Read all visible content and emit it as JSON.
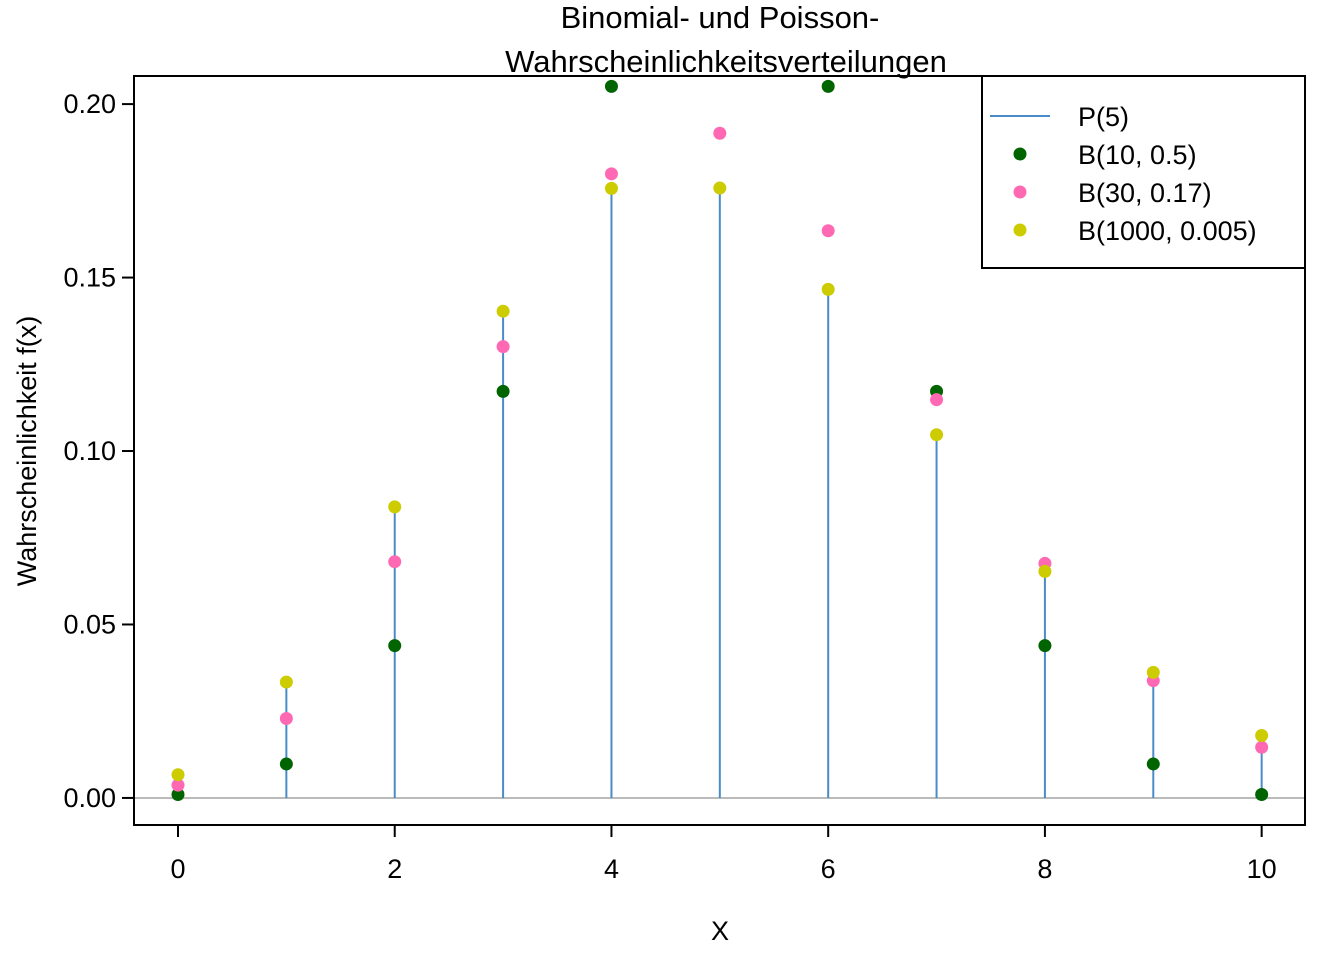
{
  "chart_data": {
    "type": "stem-scatter",
    "title": [
      "Binomial- und Poisson-",
      "Wahrscheinlichkeitsverteilungen"
    ],
    "x_label": "X",
    "y_label": "Wahrscheinlichkeit f(x)",
    "x": [
      0,
      1,
      2,
      3,
      4,
      5,
      6,
      7,
      8,
      9,
      10
    ],
    "series": [
      {
        "name": "P(5)",
        "style": "stem",
        "color": "#4a8cc9",
        "values": [
          0.0067,
          0.0337,
          0.0842,
          0.1404,
          0.1755,
          0.1755,
          0.1462,
          0.1044,
          0.0653,
          0.0363,
          0.0181
        ]
      },
      {
        "name": "B(10, 0.5)",
        "style": "point",
        "color": "#006400",
        "values": [
          0.001,
          0.0098,
          0.0439,
          0.1172,
          0.2051,
          null,
          0.2051,
          0.1172,
          0.0439,
          0.0098,
          0.001
        ]
      },
      {
        "name": "B(30, 0.17)",
        "style": "point",
        "color": "#ff69b4",
        "values": [
          0.0037,
          0.0229,
          0.0681,
          0.1301,
          0.1799,
          0.1916,
          0.1635,
          0.1148,
          0.0676,
          0.0338,
          0.0146
        ]
      },
      {
        "name": "B(1000, 0.005)",
        "style": "point",
        "color": "#cccc00",
        "values": [
          0.0067,
          0.0334,
          0.0839,
          0.1403,
          0.1757,
          0.1758,
          0.1466,
          0.1047,
          0.0653,
          0.0362,
          0.018
        ]
      }
    ],
    "xlim": [
      -0.406,
      10.4
    ],
    "ylim": [
      -0.0078,
      0.2081
    ],
    "xticks": [
      0,
      2,
      4,
      6,
      8,
      10
    ],
    "yticks": [
      {
        "value": 0,
        "label": "0.00"
      },
      {
        "value": 0.05,
        "label": "0.05"
      },
      {
        "value": 0.1,
        "label": "0.10"
      },
      {
        "value": 0.15,
        "label": "0.15"
      },
      {
        "value": 0.2,
        "label": "0.20"
      }
    ],
    "legend": "top-right"
  }
}
